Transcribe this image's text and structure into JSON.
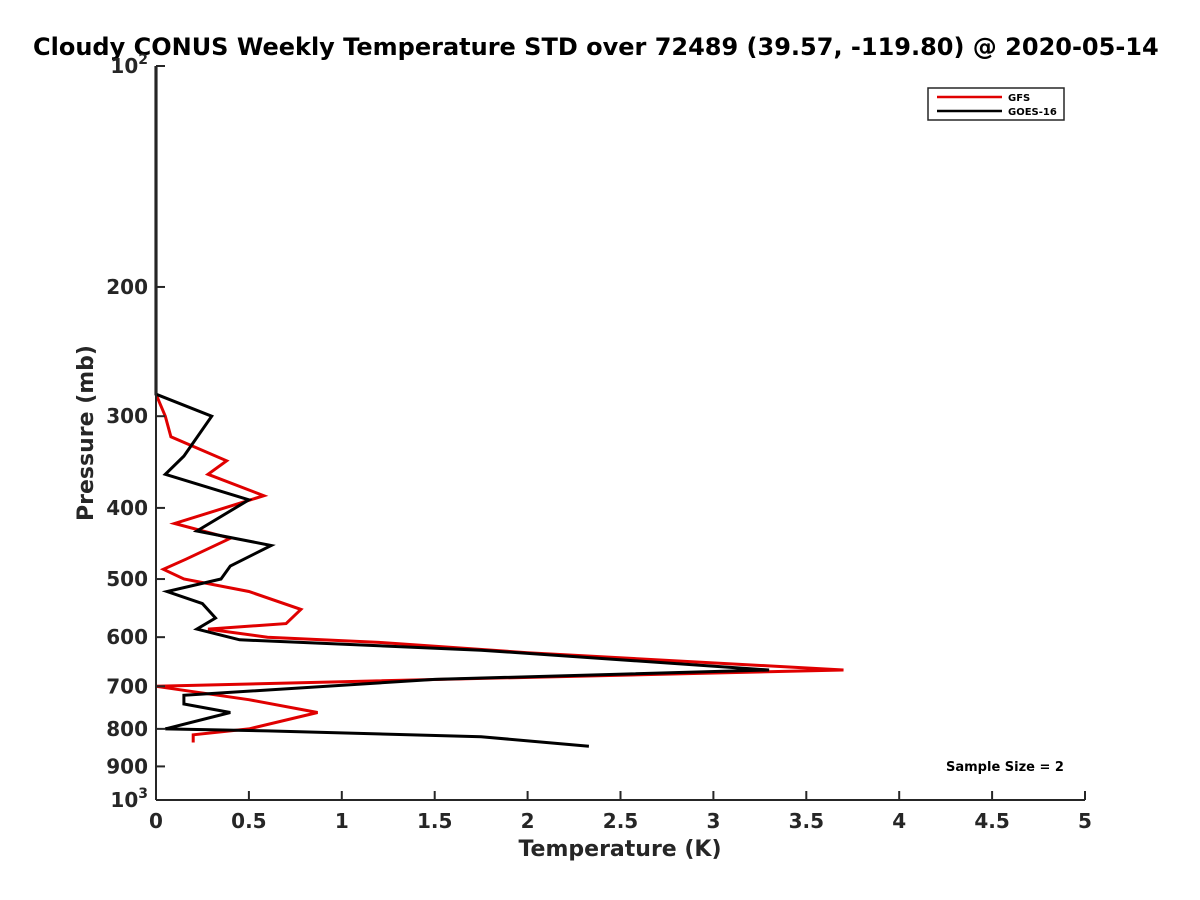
{
  "chart_data": {
    "type": "line",
    "title": "Cloudy CONUS Weekly Temperature STD over 72489 (39.57, -119.80) @ 2020-05-14",
    "xlabel": "Temperature (K)",
    "ylabel": "Pressure (mb)",
    "xlim": [
      0,
      5
    ],
    "ylim": [
      100,
      1000
    ],
    "y_scale": "log",
    "y_reversed": true,
    "x_ticks": [
      "0",
      "0.5",
      "1",
      "1.5",
      "2",
      "2.5",
      "3",
      "3.5",
      "4",
      "4.5",
      "5"
    ],
    "y_ticks": [
      {
        "value": 100,
        "base": "10",
        "exp": "2"
      },
      {
        "value": 200,
        "label": "200"
      },
      {
        "value": 300,
        "label": "300"
      },
      {
        "value": 400,
        "label": "400"
      },
      {
        "value": 500,
        "label": "500"
      },
      {
        "value": 600,
        "label": "600"
      },
      {
        "value": 700,
        "label": "700"
      },
      {
        "value": 800,
        "label": "800"
      },
      {
        "value": 900,
        "label": "900"
      },
      {
        "value": 1000,
        "base": "10",
        "exp": "3"
      }
    ],
    "grid": false,
    "legend_position": "top-right",
    "annotation": "Sample Size = 2",
    "series": [
      {
        "name": "GFS",
        "color": "#e00000",
        "points": [
          [
            0,
            100
          ],
          [
            0,
            280
          ],
          [
            0.05,
            300
          ],
          [
            0.08,
            320
          ],
          [
            0.38,
            345
          ],
          [
            0.28,
            360
          ],
          [
            0.58,
            385
          ],
          [
            0.1,
            420
          ],
          [
            0.4,
            440
          ],
          [
            0.16,
            470
          ],
          [
            0.04,
            485
          ],
          [
            0.15,
            500
          ],
          [
            0.5,
            520
          ],
          [
            0.78,
            550
          ],
          [
            0.7,
            575
          ],
          [
            0.28,
            585
          ],
          [
            0.6,
            600
          ],
          [
            1.2,
            610
          ],
          [
            2.0,
            630
          ],
          [
            3.7,
            665
          ],
          [
            1.0,
            690
          ],
          [
            0.0,
            700
          ],
          [
            0.5,
            730
          ],
          [
            0.87,
            760
          ],
          [
            0.5,
            800
          ],
          [
            0.2,
            815
          ],
          [
            0.2,
            835
          ]
        ]
      },
      {
        "name": "GOES-16",
        "color": "#000000",
        "points": [
          [
            0,
            100
          ],
          [
            0,
            280
          ],
          [
            0.3,
            300
          ],
          [
            0.15,
            340
          ],
          [
            0.05,
            360
          ],
          [
            0.5,
            390
          ],
          [
            0.22,
            430
          ],
          [
            0.62,
            450
          ],
          [
            0.4,
            480
          ],
          [
            0.35,
            500
          ],
          [
            0.06,
            520
          ],
          [
            0.25,
            540
          ],
          [
            0.32,
            565
          ],
          [
            0.22,
            585
          ],
          [
            0.45,
            605
          ],
          [
            1.75,
            625
          ],
          [
            3.3,
            665
          ],
          [
            1.5,
            685
          ],
          [
            0.15,
            720
          ],
          [
            0.15,
            740
          ],
          [
            0.4,
            760
          ],
          [
            0.05,
            800
          ],
          [
            0.6,
            805
          ],
          [
            1.75,
            820
          ],
          [
            2.33,
            845
          ]
        ]
      }
    ]
  }
}
